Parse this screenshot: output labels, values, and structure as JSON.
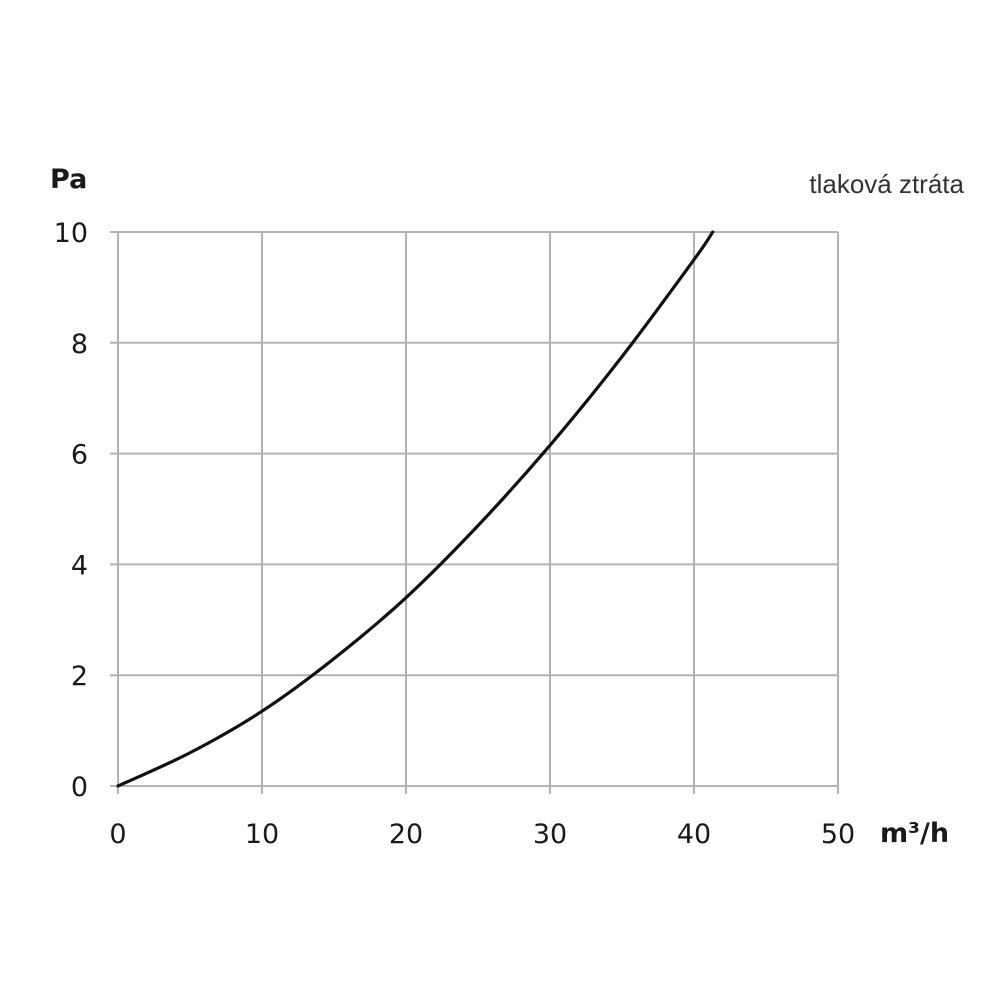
{
  "chart_data": {
    "type": "line",
    "title": "",
    "ylabel": "Pa",
    "xlabel": "m³/h",
    "xlim": [
      0,
      50
    ],
    "ylim": [
      0,
      10
    ],
    "x_ticks": [
      "0",
      "10",
      "20",
      "30",
      "40",
      "50"
    ],
    "y_ticks": [
      "0",
      "2",
      "4",
      "6",
      "8",
      "10"
    ],
    "grid": true,
    "legend_position": "top-right",
    "series": [
      {
        "name": "tlaková ztráta",
        "color": "#111111",
        "points": [
          {
            "x": 0,
            "y": 0
          },
          {
            "x": 5,
            "y": 0.6
          },
          {
            "x": 10,
            "y": 1.35
          },
          {
            "x": 15,
            "y": 2.3
          },
          {
            "x": 20,
            "y": 3.4
          },
          {
            "x": 25,
            "y": 4.7
          },
          {
            "x": 30,
            "y": 6.15
          },
          {
            "x": 35,
            "y": 7.75
          },
          {
            "x": 40,
            "y": 9.5
          },
          {
            "x": 41.3,
            "y": 10
          }
        ]
      }
    ],
    "colors": {
      "grid": "#b3b3b3",
      "curve": "#111111",
      "text": "#1a1a1a"
    }
  }
}
